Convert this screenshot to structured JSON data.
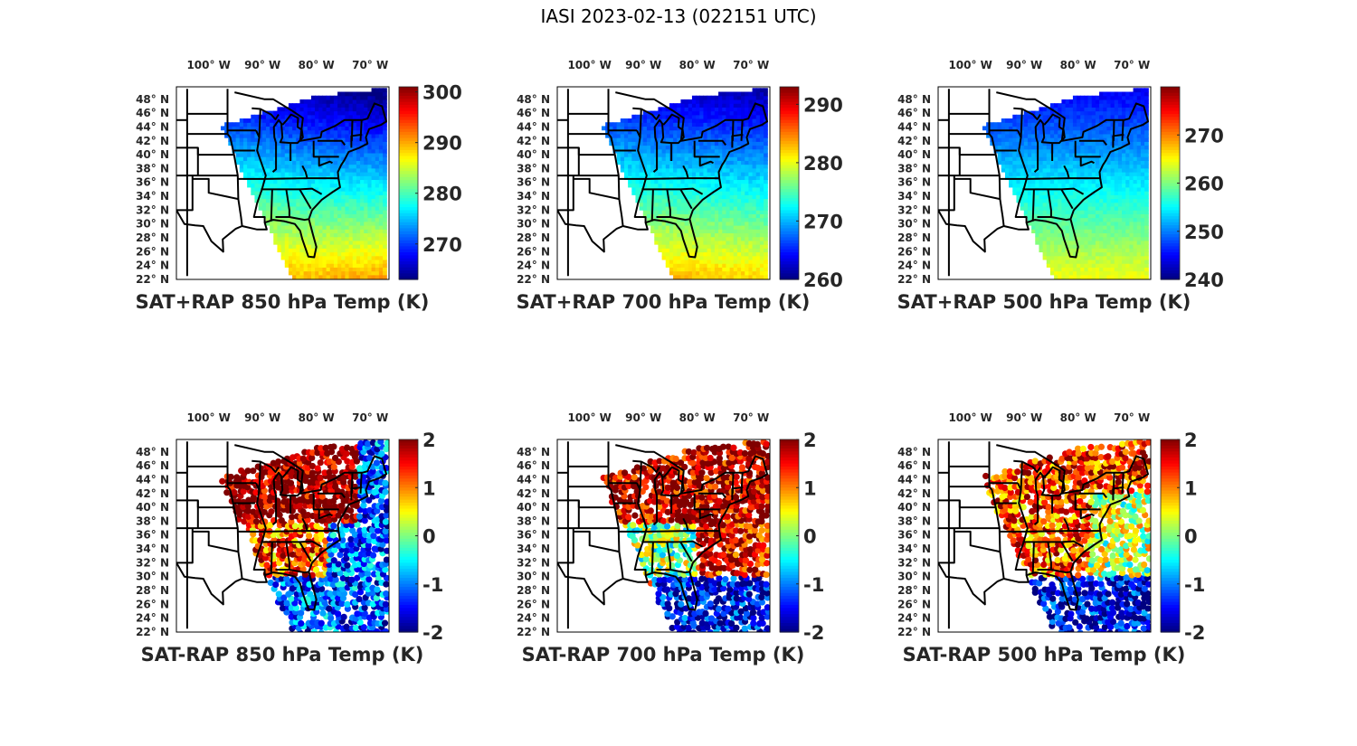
{
  "figure_title": "IASI 2023-02-13 (022151 UTC)",
  "chart_data": [
    {
      "type": "heatmap",
      "title": "SAT+RAP 850 hPa Temp (K)",
      "lon_ticks": [
        "100° W",
        "90° W",
        "80° W",
        "70° W"
      ],
      "lat_ticks": [
        "48° N",
        "46° N",
        "44° N",
        "42° N",
        "40° N",
        "38° N",
        "36° N",
        "34° N",
        "32° N",
        "30° N",
        "28° N",
        "26° N",
        "24° N",
        "22° N"
      ],
      "colormap": "jet",
      "clim": [
        263,
        301
      ],
      "colorbar_ticks": [
        270,
        280,
        290,
        300
      ],
      "field_description": "cool (~266-272 K) over Great Lakes/Northeast, ~278-282 K mid-Atlantic, ~285-290 K over Gulf/SE Atlantic"
    },
    {
      "type": "heatmap",
      "title": "SAT+RAP 700 hPa Temp (K)",
      "lon_ticks": [
        "100° W",
        "90° W",
        "80° W",
        "70° W"
      ],
      "lat_ticks": [
        "48° N",
        "46° N",
        "44° N",
        "42° N",
        "40° N",
        "38° N",
        "36° N",
        "34° N",
        "32° N",
        "30° N",
        "28° N",
        "26° N",
        "24° N",
        "22° N"
      ],
      "colormap": "jet",
      "clim": [
        260,
        293
      ],
      "colorbar_ticks": [
        260,
        270,
        280,
        290
      ],
      "field_description": "~262-266 K north, ~272 K central, ~282-285 K over Gulf"
    },
    {
      "type": "heatmap",
      "title": "SAT+RAP 500 hPa Temp (K)",
      "lon_ticks": [
        "100° W",
        "90° W",
        "80° W",
        "70° W"
      ],
      "lat_ticks": [
        "48° N",
        "46° N",
        "44° N",
        "42° N",
        "40° N",
        "38° N",
        "36° N",
        "34° N",
        "32° N",
        "30° N",
        "28° N",
        "26° N",
        "24° N",
        "22° N"
      ],
      "colormap": "jet",
      "clim": [
        240,
        280
      ],
      "colorbar_ticks": [
        240,
        250,
        260,
        270
      ],
      "field_description": "~243-248 K north, ~252 K central, ~262 K south"
    },
    {
      "type": "scatter",
      "title": "SAT-RAP 850 hPa Temp (K)",
      "lon_ticks": [
        "100° W",
        "90° W",
        "80° W",
        "70° W"
      ],
      "lat_ticks": [
        "48° N",
        "46° N",
        "44° N",
        "42° N",
        "40° N",
        "38° N",
        "36° N",
        "34° N",
        "32° N",
        "30° N",
        "28° N",
        "26° N",
        "24° N",
        "22° N"
      ],
      "colormap": "jet",
      "clim": [
        -2,
        2
      ],
      "colorbar_ticks": [
        2,
        1,
        0,
        -1,
        -2
      ],
      "field_description": "strong positive (+2) over Great Lakes/Ohio Valley, +1 southeast, -1 to -2 over Atlantic/Gulf"
    },
    {
      "type": "scatter",
      "title": "SAT-RAP 700 hPa Temp (K)",
      "lon_ticks": [
        "100° W",
        "90° W",
        "80° W",
        "70° W"
      ],
      "lat_ticks": [
        "48° N",
        "46° N",
        "44° N",
        "42° N",
        "40° N",
        "38° N",
        "36° N",
        "34° N",
        "32° N",
        "30° N",
        "28° N",
        "26° N",
        "24° N",
        "22° N"
      ],
      "colormap": "jet",
      "clim": [
        -2,
        2
      ],
      "colorbar_ticks": [
        2,
        1,
        0,
        -1,
        -2
      ],
      "field_description": "+2 north and Atlantic coast, ~0 southeast states, -2 Gulf/Florida, +2 western Gulf"
    },
    {
      "type": "scatter",
      "title": "SAT-RAP 500 hPa Temp (K)",
      "lon_ticks": [
        "100° W",
        "90° W",
        "80° W",
        "70° W"
      ],
      "lat_ticks": [
        "48° N",
        "46° N",
        "44° N",
        "42° N",
        "40° N",
        "38° N",
        "36° N",
        "34° N",
        "32° N",
        "30° N",
        "28° N",
        "26° N",
        "24° N",
        "22° N"
      ],
      "colormap": "jet",
      "clim": [
        -2,
        2
      ],
      "colorbar_ticks": [
        2,
        1,
        0,
        -1,
        -2
      ],
      "field_description": "+1 to +2 north and southeast, mixed center, -2 over Gulf/Florida"
    }
  ]
}
